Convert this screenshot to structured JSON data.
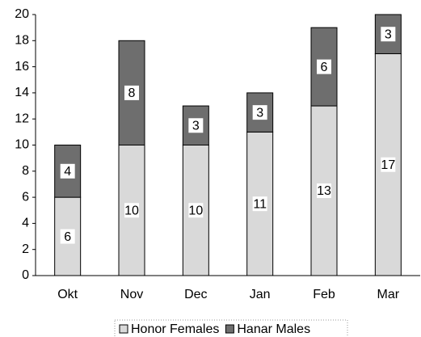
{
  "chart_data": {
    "type": "stacked_bar",
    "categories": [
      "Okt",
      "Nov",
      "Dec",
      "Jan",
      "Feb",
      "Mar"
    ],
    "series": [
      {
        "name": "Honor Females",
        "color": "#d9d9d9",
        "values": [
          6,
          10,
          10,
          11,
          13,
          17
        ]
      },
      {
        "name": "Hanar Males",
        "color": "#6e6e6e",
        "values": [
          4,
          8,
          3,
          3,
          6,
          3
        ]
      }
    ],
    "ylim": [
      0,
      20
    ],
    "yticks": [
      0,
      2,
      4,
      6,
      8,
      10,
      12,
      14,
      16,
      18,
      20
    ],
    "legend": "bottom",
    "data_labels": true
  }
}
